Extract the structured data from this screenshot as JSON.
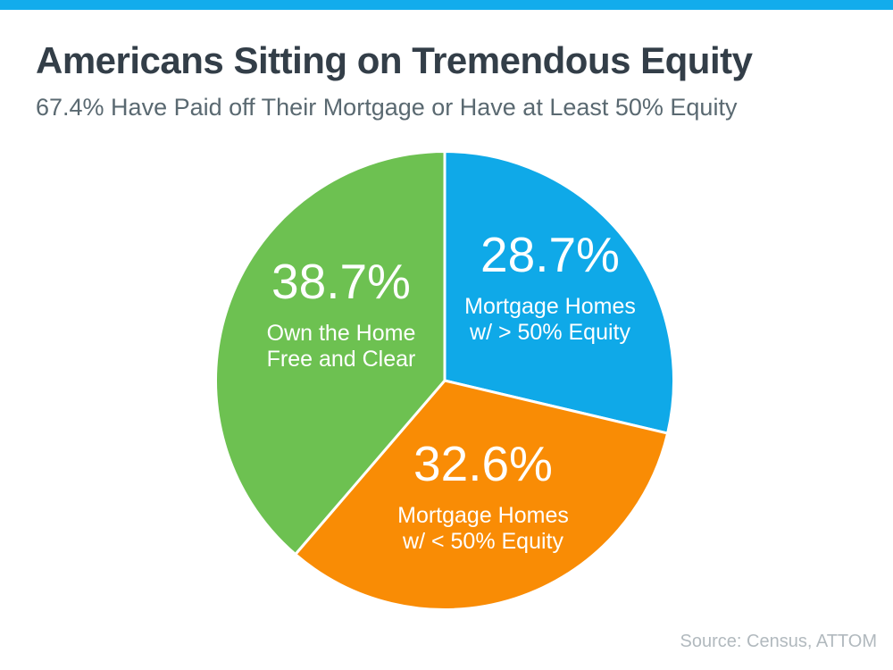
{
  "page": {
    "title": "Americans Sitting on Tremendous Equity",
    "subtitle": "67.4% Have Paid off Their Mortgage or Have at Least 50% Equity",
    "source": "Source: Census, ATTOM",
    "colors": {
      "accent_bar": "#12ACEC",
      "title_text": "#333E48",
      "subtitle_text": "#5A6971",
      "source_text": "#B1B9BE",
      "slice_text": "#FFFFFF"
    }
  },
  "chart_data": {
    "type": "pie",
    "title": "Americans Sitting on Tremendous Equity",
    "subtitle": "67.4% Have Paid off Their Mortgage or Have at Least 50% Equity",
    "source": "Source: Census, ATTOM",
    "start_angle_deg": 0,
    "direction": "clockwise",
    "total": 100.0,
    "legend_position": "labels-inside-slices",
    "slices": [
      {
        "key": "mortgage-gt-50-equity",
        "name": "Mortgage Homes w/ > 50% Equity",
        "value": 28.7,
        "display": "28.7%",
        "label_line1": "Mortgage Homes",
        "label_line2": "w/ > 50% Equity",
        "color": "#0FA9E8"
      },
      {
        "key": "mortgage-lt-50-equity",
        "name": "Mortgage Homes w/ < 50% Equity",
        "value": 32.6,
        "display": "32.6%",
        "label_line1": "Mortgage Homes",
        "label_line2": "w/ < 50% Equity",
        "color": "#F98C05"
      },
      {
        "key": "free-and-clear",
        "name": "Own the Home Free and Clear",
        "value": 38.7,
        "display": "38.7%",
        "label_line1": "Own the Home",
        "label_line2": "Free and Clear",
        "color": "#6DC151"
      }
    ]
  }
}
